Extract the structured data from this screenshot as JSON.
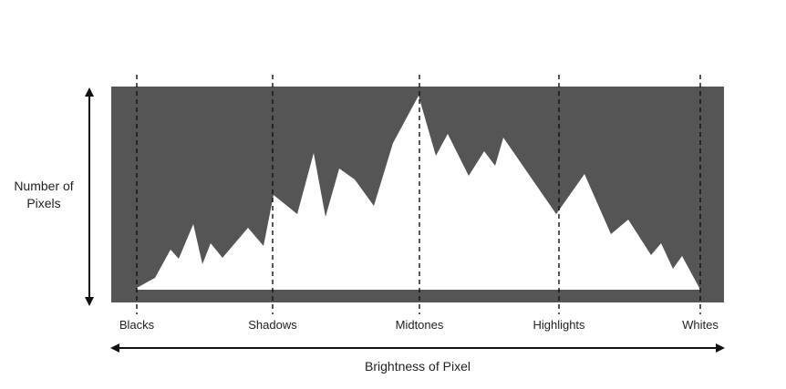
{
  "y_axis": {
    "title_line1": "Number of",
    "title_line2": "Pixels"
  },
  "x_axis": {
    "title": "Brightness of Pixel"
  },
  "zones": [
    {
      "label": "Blacks"
    },
    {
      "label": "Shadows"
    },
    {
      "label": "Midtones"
    },
    {
      "label": "Highlights"
    },
    {
      "label": "Whites"
    }
  ],
  "colors": {
    "background_panel": "#555555",
    "histogram_fill": "#ffffff",
    "lines": "#111111"
  }
}
